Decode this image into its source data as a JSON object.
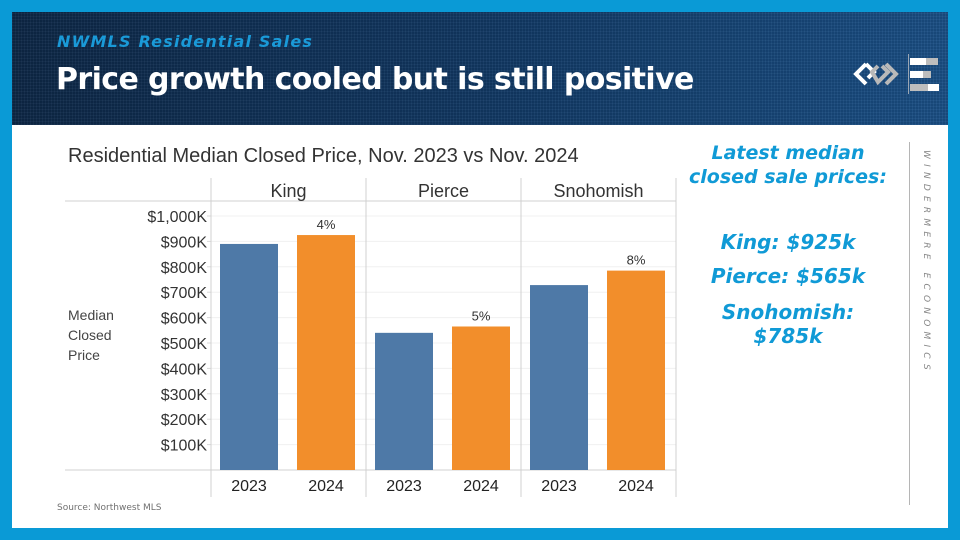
{
  "header": {
    "subtitle": "NWMLS Residential Sales",
    "title": "Price growth cooled but is still positive"
  },
  "brand": {
    "logo_icon": "windermere-logo-icon",
    "economics_icon": "economics-bars-icon",
    "vertical_text": "WINDERMERE ECONOMICS"
  },
  "colors": {
    "frame": "#0a9ad6",
    "series_2023": "#4e79a7",
    "series_2024": "#f28e2b",
    "accent_text": "#109ad6"
  },
  "callout": {
    "heading_line1": "Latest median",
    "heading_line2": "closed sale prices:",
    "king": "King: $925k",
    "pierce": "Pierce: $565k",
    "snohomish_line1": "Snohomish:",
    "snohomish_line2": "$785k"
  },
  "source": "Source: Northwest MLS",
  "chart_data": {
    "type": "bar",
    "title": "Residential Median Closed Price, Nov. 2023 vs Nov. 2024",
    "ylabel_lines": [
      "Median",
      "Closed",
      "Price"
    ],
    "xlabel": "",
    "ylim": [
      0,
      1050
    ],
    "y_unit": "thousands USD",
    "yticks": [
      100,
      200,
      300,
      400,
      500,
      600,
      700,
      800,
      900,
      1000
    ],
    "ytick_labels": [
      "$100K",
      "$200K",
      "$300K",
      "$400K",
      "$500K",
      "$600K",
      "$700K",
      "$800K",
      "$900K",
      "$1,000K"
    ],
    "grid": true,
    "panels": [
      {
        "name": "King",
        "categories": [
          "2023",
          "2024"
        ],
        "values": [
          890,
          925
        ],
        "labels": [
          "",
          "4%"
        ]
      },
      {
        "name": "Pierce",
        "categories": [
          "2023",
          "2024"
        ],
        "values": [
          540,
          565
        ],
        "labels": [
          "",
          "5%"
        ]
      },
      {
        "name": "Snohomish",
        "categories": [
          "2023",
          "2024"
        ],
        "values": [
          728,
          785
        ],
        "labels": [
          "",
          "8%"
        ]
      }
    ],
    "series": [
      {
        "name": "2023",
        "color": "#4e79a7"
      },
      {
        "name": "2024",
        "color": "#f28e2b"
      }
    ]
  }
}
